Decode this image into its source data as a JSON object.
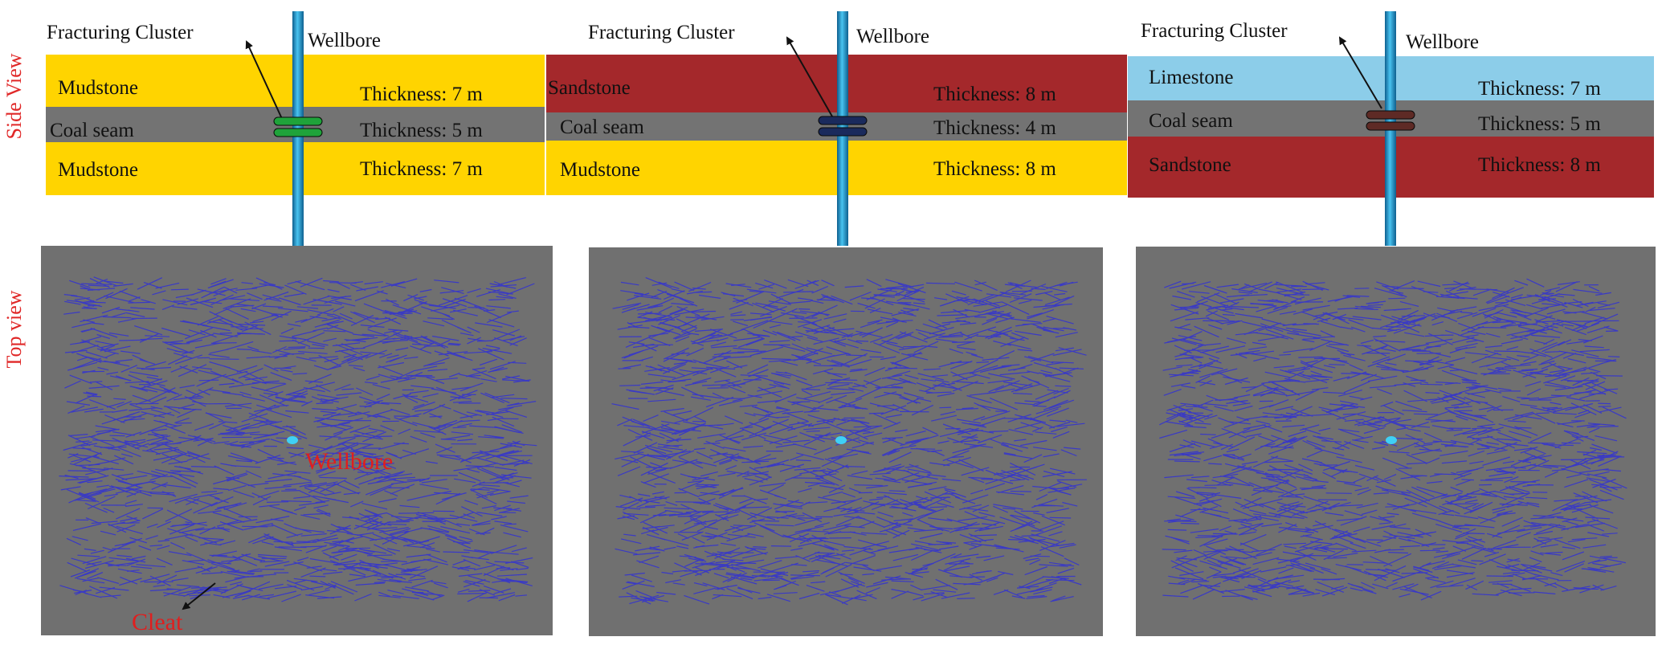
{
  "row_labels": {
    "side": "Side View",
    "top": "Top view"
  },
  "colors": {
    "mudstone": "#ffd400",
    "sandstone": "#a4282b",
    "limestone": "#8ccde9",
    "coal": "#737373",
    "wellbore": "#2aa4dc",
    "cleat": "#3a3ac4",
    "top_bg": "#707070",
    "annotation_red": "#e01e1e"
  },
  "panels": [
    {
      "cluster_label": "Fracturing  Cluster",
      "wellbore_label": "Wellbore",
      "cluster_color": "#1fa33a",
      "layers": [
        {
          "rock": "Mudstone",
          "rock_key": "mudstone",
          "thickness": "Thickness: 7 m"
        },
        {
          "rock": "Coal seam",
          "rock_key": "coal",
          "thickness": "Thickness: 5 m"
        },
        {
          "rock": "Mudstone",
          "rock_key": "mudstone",
          "thickness": "Thickness: 7 m"
        }
      ],
      "top_annotations": {
        "wellbore": "Wellbore",
        "cleat": "Cleat"
      }
    },
    {
      "cluster_label": "Fracturing  Cluster",
      "wellbore_label": "Wellbore",
      "cluster_color": "#1a2a5c",
      "layers": [
        {
          "rock": "Sandstone",
          "rock_key": "sandstone",
          "thickness": "Thickness: 8 m"
        },
        {
          "rock": "Coal seam",
          "rock_key": "coal",
          "thickness": "Thickness: 4 m"
        },
        {
          "rock": "Mudstone",
          "rock_key": "mudstone",
          "thickness": "Thickness: 8 m"
        }
      ]
    },
    {
      "cluster_label": "Fracturing  Cluster",
      "wellbore_label": "Wellbore",
      "cluster_color": "#5e2a25",
      "layers": [
        {
          "rock": "Limestone",
          "rock_key": "limestone",
          "thickness": "Thickness: 7 m"
        },
        {
          "rock": "Coal seam",
          "rock_key": "coal",
          "thickness": "Thickness: 5 m"
        },
        {
          "rock": "Sandstone",
          "rock_key": "sandstone",
          "thickness": "Thickness: 8 m"
        }
      ]
    }
  ]
}
